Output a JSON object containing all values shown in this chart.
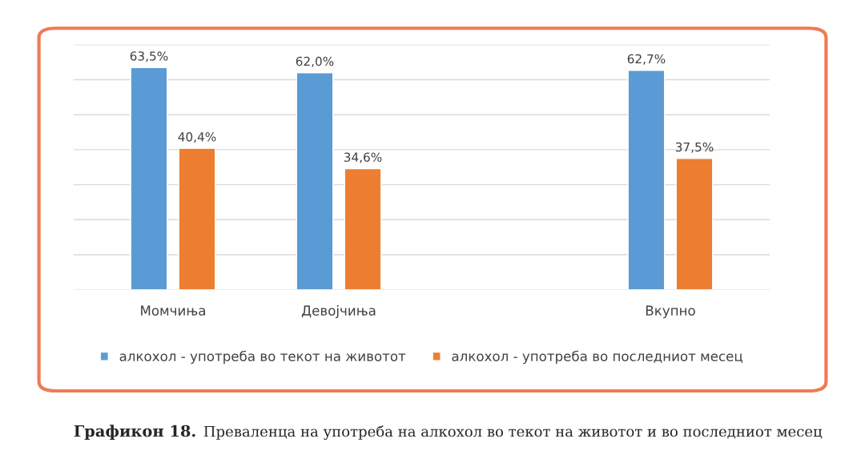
{
  "chart_data": {
    "type": "bar",
    "categories": [
      "Момчиња",
      "Девојчиња",
      null,
      "Вкупно"
    ],
    "series": [
      {
        "name": "алкохол - употреба во текот на животот",
        "color": "#5b9bd5",
        "values": [
          63.5,
          62.0,
          null,
          62.7
        ],
        "value_labels": [
          "63,5%",
          "62,0%",
          null,
          "62,7%"
        ]
      },
      {
        "name": "алкохол - употреба во последниот месец",
        "color": "#ed7d31",
        "values": [
          40.4,
          34.6,
          null,
          37.5
        ],
        "value_labels": [
          "40,4%",
          "34,6%",
          null,
          "37,5%"
        ]
      }
    ],
    "ylim": [
      0,
      70
    ],
    "yticks": [
      {
        "value": 0,
        "label": null
      },
      {
        "value": 10,
        "label": null
      },
      {
        "value": 20,
        "label": null
      },
      {
        "value": 30,
        "label": null
      },
      {
        "value": 40,
        "label": null
      },
      {
        "value": 50,
        "label": null
      },
      {
        "value": 60,
        "label": null
      },
      {
        "value": 70,
        "label": null
      }
    ],
    "tick_labels": "x",
    "grid": "y",
    "legend": "bottom",
    "annotations": [
      "Графикон 18.",
      "Преваленца на употреба на алкохол во текот на животот и во последниот месец"
    ]
  }
}
